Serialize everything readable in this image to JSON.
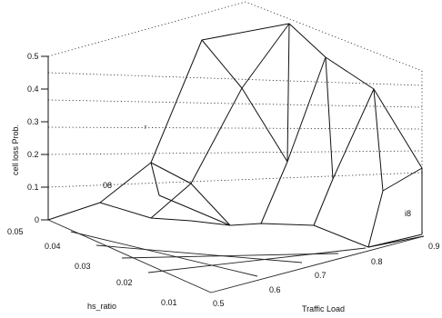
{
  "chart_data": {
    "type": "surface",
    "title": "",
    "xlabel": "Traffic Load",
    "ylabel": "hs_ratio",
    "zlabel": "cell loss Prob.",
    "x": [
      0.5,
      0.6,
      0.7,
      0.8,
      0.9
    ],
    "y": [
      0.01,
      0.02,
      0.03,
      0.04,
      0.05
    ],
    "x_tick_labels": [
      "0.5",
      "0.6",
      "0.7",
      "0.8",
      "0.9"
    ],
    "y_tick_labels": [
      "0.01",
      "0.02",
      "0.03",
      "0.04",
      "0.05"
    ],
    "z_tick_labels": [
      "0",
      "0.1",
      "0.2",
      "0.3",
      "0.4",
      "0.5"
    ],
    "zlim": [
      0,
      0.5
    ],
    "z": [
      [
        0.0,
        0.0,
        0.0,
        0.0,
        0.0
      ],
      [
        0.0,
        0.0,
        0.0,
        0.0,
        0.0
      ],
      [
        0.0,
        0.0,
        0.0,
        0.0,
        0.0
      ],
      [
        0.0,
        0.0,
        0.0,
        0.0,
        0.02
      ],
      [
        0.02,
        0.07,
        0.1,
        0.1,
        0.1
      ]
    ],
    "back_ridge": [
      0.1,
      0.4,
      0.55,
      0.45,
      0.2
    ],
    "annotations": [
      "08",
      "r",
      "i8"
    ],
    "grid": true
  }
}
